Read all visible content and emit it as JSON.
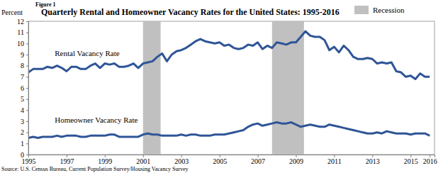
{
  "chart_data": {
    "type": "line",
    "figure_label": "Figure 1",
    "title": "Quarterly Rental and Homeowner Vacancy Rates for the United States: 1995-2016",
    "ylabel": "Percent",
    "source": "Source: U.S. Census Bureau, Current Population Survey/Housing Vacancy Survey",
    "x": [
      1995,
      1995.25,
      1995.5,
      1995.75,
      1996,
      1996.25,
      1996.5,
      1996.75,
      1997,
      1997.25,
      1997.5,
      1997.75,
      1998,
      1998.25,
      1998.5,
      1998.75,
      1999,
      1999.25,
      1999.5,
      1999.75,
      2000,
      2000.25,
      2000.5,
      2000.75,
      2001,
      2001.25,
      2001.5,
      2001.75,
      2002,
      2002.25,
      2002.5,
      2002.75,
      2003,
      2003.25,
      2003.5,
      2003.75,
      2004,
      2004.25,
      2004.5,
      2004.75,
      2005,
      2005.25,
      2005.5,
      2005.75,
      2006,
      2006.25,
      2006.5,
      2006.75,
      2007,
      2007.25,
      2007.5,
      2007.75,
      2008,
      2008.25,
      2008.5,
      2008.75,
      2009,
      2009.25,
      2009.5,
      2009.75,
      2010,
      2010.25,
      2010.5,
      2010.75,
      2011,
      2011.25,
      2011.5,
      2011.75,
      2012,
      2012.25,
      2012.5,
      2012.75,
      2013,
      2013.25,
      2013.5,
      2013.75,
      2014,
      2014.25,
      2014.5,
      2014.75,
      2015,
      2015.25,
      2015.5,
      2015.75,
      2016
    ],
    "series": [
      {
        "name": "Rental Vacancy Rate",
        "color": "#2f5597",
        "values": [
          7.4,
          7.7,
          7.7,
          7.7,
          7.9,
          7.8,
          8.0,
          7.8,
          7.5,
          7.9,
          7.9,
          7.7,
          7.7,
          8.0,
          8.2,
          7.8,
          8.2,
          8.1,
          8.2,
          7.9,
          7.9,
          8.0,
          8.2,
          7.8,
          8.2,
          8.3,
          8.4,
          8.8,
          9.1,
          8.4,
          9.0,
          9.3,
          9.4,
          9.6,
          9.9,
          10.2,
          10.4,
          10.2,
          10.1,
          10.0,
          10.1,
          9.8,
          9.9,
          9.6,
          9.5,
          9.6,
          9.9,
          9.8,
          10.1,
          9.5,
          9.8,
          9.6,
          10.1,
          10.0,
          9.9,
          10.1,
          10.1,
          10.6,
          11.1,
          10.7,
          10.6,
          10.6,
          10.3,
          9.4,
          9.7,
          9.2,
          9.8,
          9.4,
          8.8,
          8.6,
          8.6,
          8.7,
          8.6,
          8.2,
          8.3,
          8.2,
          8.3,
          7.5,
          7.4,
          7.0,
          7.1,
          6.8,
          7.3,
          7.0,
          7.0
        ]
      },
      {
        "name": "Homeowner Vacancy Rate",
        "color": "#2f5597",
        "values": [
          1.5,
          1.6,
          1.5,
          1.6,
          1.6,
          1.6,
          1.7,
          1.6,
          1.7,
          1.7,
          1.7,
          1.6,
          1.6,
          1.7,
          1.7,
          1.7,
          1.7,
          1.8,
          1.8,
          1.6,
          1.6,
          1.6,
          1.6,
          1.6,
          1.8,
          1.9,
          1.8,
          1.8,
          1.7,
          1.7,
          1.7,
          1.7,
          1.8,
          1.7,
          1.8,
          1.8,
          1.7,
          1.7,
          1.7,
          1.8,
          1.8,
          1.8,
          1.9,
          2.0,
          2.1,
          2.2,
          2.5,
          2.7,
          2.8,
          2.6,
          2.7,
          2.8,
          2.9,
          2.8,
          2.8,
          2.9,
          2.7,
          2.5,
          2.6,
          2.7,
          2.6,
          2.5,
          2.5,
          2.7,
          2.6,
          2.5,
          2.4,
          2.3,
          2.2,
          2.1,
          2.0,
          1.9,
          1.9,
          2.0,
          1.9,
          2.1,
          2.0,
          1.9,
          1.9,
          1.9,
          1.8,
          1.9,
          1.9,
          1.9,
          1.7
        ]
      }
    ],
    "recession": {
      "label": "Recession",
      "color": "#c0c0c0",
      "ranges": [
        {
          "start": 2001.0,
          "end": 2001.92
        },
        {
          "start": 2007.75,
          "end": 2009.42
        }
      ]
    },
    "xlim": [
      1995,
      2016.25
    ],
    "xticks": [
      1995,
      1997,
      1999,
      2001,
      2003,
      2005,
      2007,
      2009,
      2011,
      2013,
      2015,
      2016
    ],
    "ylim": [
      0,
      12
    ],
    "yticks": [
      0,
      1,
      2,
      3,
      4,
      5,
      6,
      7,
      8,
      9,
      10,
      11,
      12
    ],
    "grid": false
  }
}
